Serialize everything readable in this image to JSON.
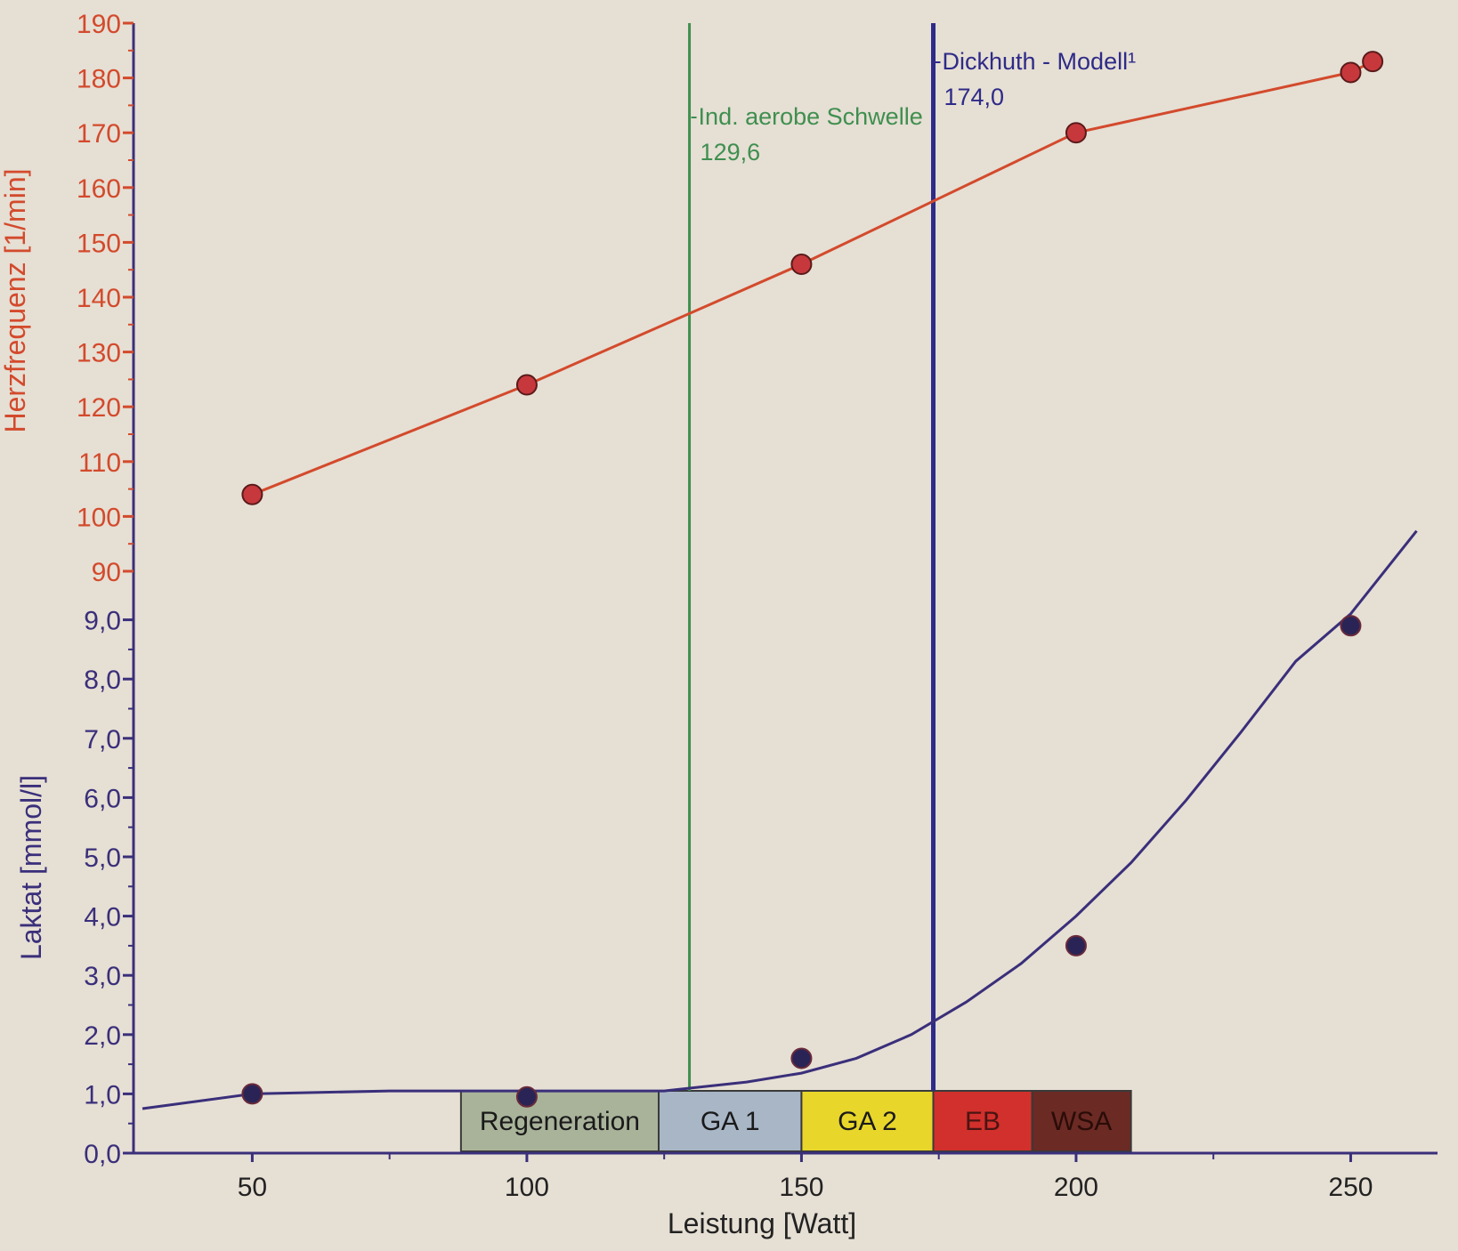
{
  "colors": {
    "heart_rate": "#d34a2c",
    "lactate": "#3a2f7a",
    "aerobic_threshold": "#3f8f4f",
    "dickhuth": "#2e2b88",
    "marker_fill": "#c6383c",
    "marker_stroke": "#5a1a1a",
    "lactate_marker_fill": "#2a2456"
  },
  "chart_data": {
    "type": "line",
    "xlabel": "Leistung [Watt]",
    "xlim": [
      30,
      265
    ],
    "xticks": [
      "50",
      "100",
      "150",
      "200",
      "250"
    ],
    "xtick_values": [
      50,
      100,
      150,
      200,
      250
    ],
    "hr_axis": {
      "label": "Herzfrequenz [1/min]",
      "ylim": [
        90,
        190
      ],
      "ticks": [
        "90",
        "100",
        "110",
        "120",
        "130",
        "140",
        "150",
        "160",
        "170",
        "180",
        "190"
      ],
      "tick_values": [
        90,
        100,
        110,
        120,
        130,
        140,
        150,
        160,
        170,
        180,
        190
      ]
    },
    "lactate_axis": {
      "label": "Laktat [mmol/l]",
      "ylim": [
        0,
        9
      ],
      "ticks": [
        "0,0",
        "1,0",
        "2,0",
        "3,0",
        "4,0",
        "5,0",
        "6,0",
        "7,0",
        "8,0",
        "9,0"
      ],
      "tick_values": [
        0,
        1,
        2,
        3,
        4,
        5,
        6,
        7,
        8,
        9
      ]
    },
    "series": [
      {
        "key": "heart_rate",
        "axis": "hr",
        "x": [
          50,
          100,
          150,
          200,
          250,
          254
        ],
        "values": [
          104,
          124,
          146,
          170,
          181,
          183
        ]
      },
      {
        "key": "lactate_points",
        "axis": "lactate",
        "x": [
          50,
          100,
          150,
          200,
          250
        ],
        "values": [
          1.0,
          0.95,
          1.6,
          3.5,
          8.9
        ]
      },
      {
        "key": "lactate_fit",
        "axis": "lactate",
        "x": [
          30,
          50,
          75,
          100,
          115,
          125,
          130,
          140,
          150,
          160,
          170,
          180,
          190,
          200,
          210,
          220,
          230,
          240,
          250,
          262
        ],
        "values": [
          0.75,
          1.0,
          1.05,
          1.05,
          1.05,
          1.05,
          1.1,
          1.2,
          1.35,
          1.6,
          2.0,
          2.55,
          3.2,
          4.0,
          4.9,
          5.95,
          7.1,
          8.3,
          9.1,
          10.5
        ]
      }
    ],
    "thresholds": [
      {
        "key": "aerobic",
        "x": 129.6,
        "label": "Ind. aerobe Schwelle",
        "value_label": "129,6"
      },
      {
        "key": "dickhuth",
        "x": 174.0,
        "label": "Dickhuth - Modell¹",
        "value_label": "174,0"
      }
    ],
    "zones": [
      {
        "label": "Regeneration",
        "from": 88,
        "to": 124,
        "color": "#a9b39a",
        "text_color": "#1a1a1a"
      },
      {
        "label": "GA 1",
        "from": 124,
        "to": 150,
        "color": "#a8b6c6",
        "text_color": "#1a1a1a"
      },
      {
        "label": "GA 2",
        "from": 150,
        "to": 174,
        "color": "#e8d62a",
        "text_color": "#1a1a1a"
      },
      {
        "label": "EB",
        "from": 174,
        "to": 192,
        "color": "#d2302c",
        "text_color": "#4a1412"
      },
      {
        "label": "WSA",
        "from": 192,
        "to": 210,
        "color": "#6b2a24",
        "text_color": "#2a0c08"
      }
    ]
  }
}
